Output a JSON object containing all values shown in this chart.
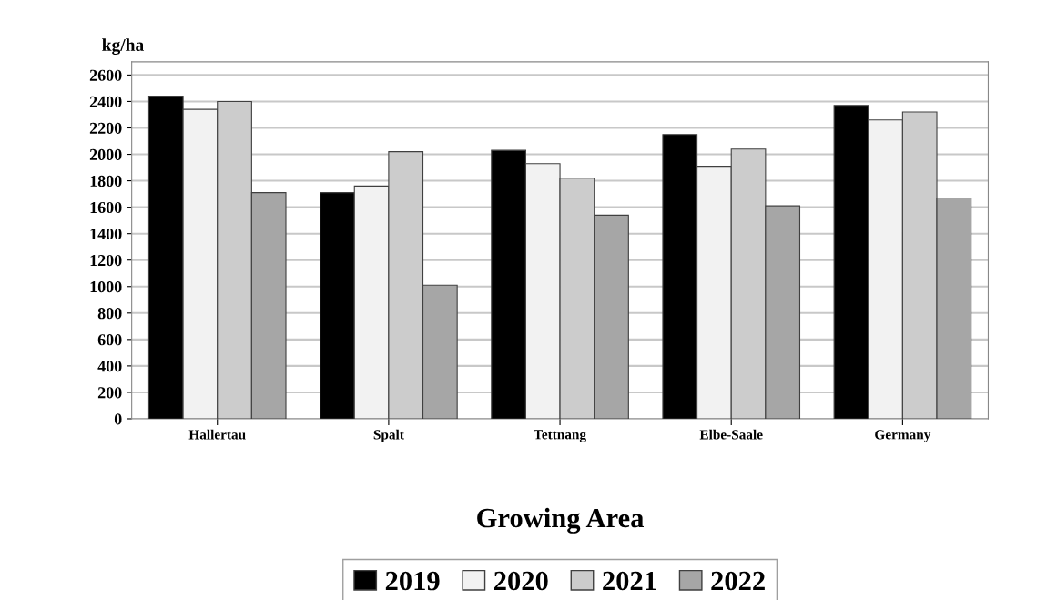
{
  "chart_data": {
    "type": "bar",
    "ylabel": "kg/ha",
    "xlabel": "Growing Area",
    "categories": [
      "Hallertau",
      "Spalt",
      "Tettnang",
      "Elbe-Saale",
      "Germany"
    ],
    "series": [
      {
        "name": "2019",
        "color": "#000000",
        "values": [
          2440,
          1710,
          2030,
          2150,
          2370
        ]
      },
      {
        "name": "2020",
        "color": "#f2f2f2",
        "values": [
          2340,
          1760,
          1930,
          1910,
          2260
        ]
      },
      {
        "name": "2021",
        "color": "#cccccc",
        "values": [
          2400,
          2020,
          1820,
          2040,
          2320
        ]
      },
      {
        "name": "2022",
        "color": "#a6a6a6",
        "values": [
          1710,
          1010,
          1540,
          1610,
          1670
        ]
      }
    ],
    "ylim": [
      0,
      2700
    ],
    "yticks": [
      0,
      200,
      400,
      600,
      800,
      1000,
      1200,
      1400,
      1600,
      1800,
      2000,
      2200,
      2400,
      2600
    ],
    "grid": "y",
    "legend": "bottom"
  }
}
